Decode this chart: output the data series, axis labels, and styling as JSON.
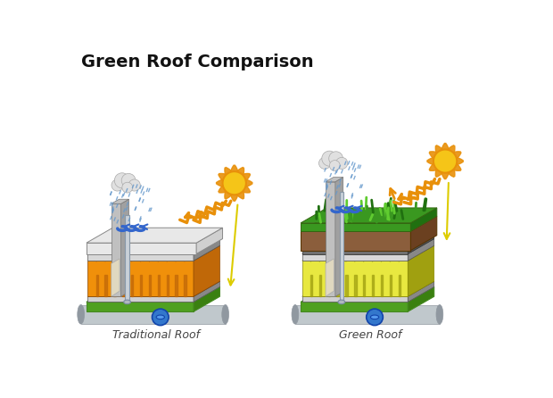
{
  "title": "Green Roof Comparison",
  "title_fontsize": 14,
  "background_color": "#ffffff",
  "left_label": "Traditional Roof",
  "right_label": "Green Roof",
  "label_fontsize": 9,
  "colors": {
    "green_base": "#6abf3a",
    "green_mid": "#4fa020",
    "green_dark": "#3a8010",
    "orange_ins": "#f0900a",
    "orange_dark": "#c06808",
    "orange_mid": "#e08010",
    "yellow_ins": "#e8e840",
    "yellow_mid": "#c8c830",
    "yellow_dark": "#a0a010",
    "gray_top": "#d0d0d0",
    "gray_mid": "#b0b0b0",
    "gray_dark": "#888888",
    "gray_wall": "#c0c0c0",
    "gray_wall_dark": "#a0a0a0",
    "brown_soil": "#8B5E3C",
    "brown_dark": "#6B4020",
    "grass_green": "#3a9820",
    "grass_light": "#60cc30",
    "grass_dark": "#207010",
    "blue_rain": "#6699cc",
    "blue_water": "#3366cc",
    "sun_center": "#f5c518",
    "sun_ray": "#e8900a",
    "cloud_light": "#e0e0e0",
    "cloud_dark": "#c8c8c8",
    "pipe_blue": "#3377cc",
    "scroll_gray": "#c0c8cc",
    "scroll_dark": "#9098a0",
    "white_roof_top": "#e8e8e8",
    "white_roof_mid": "#d0d0d0",
    "beige": "#f0e8d0",
    "wall_beige": "#e0d8c0"
  }
}
